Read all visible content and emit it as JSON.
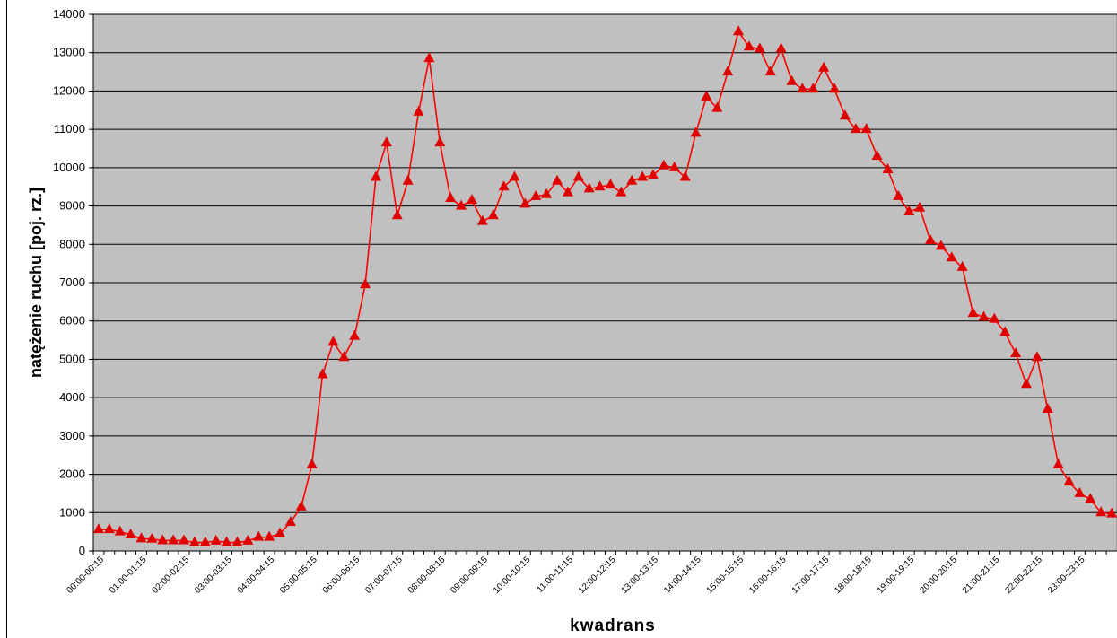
{
  "chart_data": {
    "type": "line",
    "xlabel": "kwadrans",
    "ylabel": "natężenie ruchu [poj. rz.]",
    "categories": [
      "00:00-00:15",
      null,
      null,
      null,
      "01:00-01:15",
      null,
      null,
      null,
      "02:00-02:15",
      null,
      null,
      null,
      "03:00-03:15",
      null,
      null,
      null,
      "04:00-04:15",
      null,
      null,
      null,
      "05:00-05:15",
      null,
      null,
      null,
      "06:00-06:15",
      null,
      null,
      null,
      "07:00-07:15",
      null,
      null,
      null,
      "08:00-08:15",
      null,
      null,
      null,
      "09:00-09:15",
      null,
      null,
      null,
      "10:00-10:15",
      null,
      null,
      null,
      "11:00-11:15",
      null,
      null,
      null,
      "12:00-12:15",
      null,
      null,
      null,
      "13:00-13:15",
      null,
      null,
      null,
      "14:00-14:15",
      null,
      null,
      null,
      "15:00-15:15",
      null,
      null,
      null,
      "16:00-16:15",
      null,
      null,
      null,
      "17:00-17:15",
      null,
      null,
      null,
      "18:00-18:15",
      null,
      null,
      null,
      "19:00-19:15",
      null,
      null,
      null,
      "20:00-20:15",
      null,
      null,
      null,
      "21:00-21:15",
      null,
      null,
      null,
      "22:00-22:15",
      null,
      null,
      null,
      "23:00-23:15",
      null,
      null,
      null
    ],
    "values": [
      560,
      560,
      500,
      420,
      320,
      310,
      270,
      270,
      270,
      220,
      220,
      260,
      220,
      220,
      260,
      360,
      360,
      450,
      750,
      1150,
      2250,
      4600,
      5450,
      5050,
      5600,
      6950,
      9750,
      10650,
      8750,
      9650,
      11450,
      12850,
      10650,
      9200,
      9000,
      9150,
      8600,
      8750,
      9500,
      9750,
      9050,
      9250,
      9300,
      9650,
      9350,
      9750,
      9450,
      9500,
      9550,
      9350,
      9650,
      9750,
      9800,
      10050,
      10000,
      9750,
      10900,
      11850,
      11550,
      12500,
      13550,
      13150,
      13100,
      12500,
      13100,
      12250,
      12050,
      12050,
      12600,
      12050,
      11350,
      11000,
      11000,
      10300,
      9950,
      9250,
      8850,
      8950,
      8100,
      7950,
      7650,
      7400,
      6200,
      6100,
      6050,
      5700,
      5150,
      4350,
      5050,
      3700,
      2250,
      1800,
      1500,
      1350,
      1000,
      970
    ],
    "color": "#ff0000",
    "ylim": [
      0,
      14000
    ],
    "yticks": [
      0,
      1000,
      2000,
      3000,
      4000,
      5000,
      6000,
      7000,
      8000,
      9000,
      10000,
      11000,
      12000,
      13000,
      14000
    ],
    "grid": true,
    "plot_background": "#c0c0c0"
  }
}
